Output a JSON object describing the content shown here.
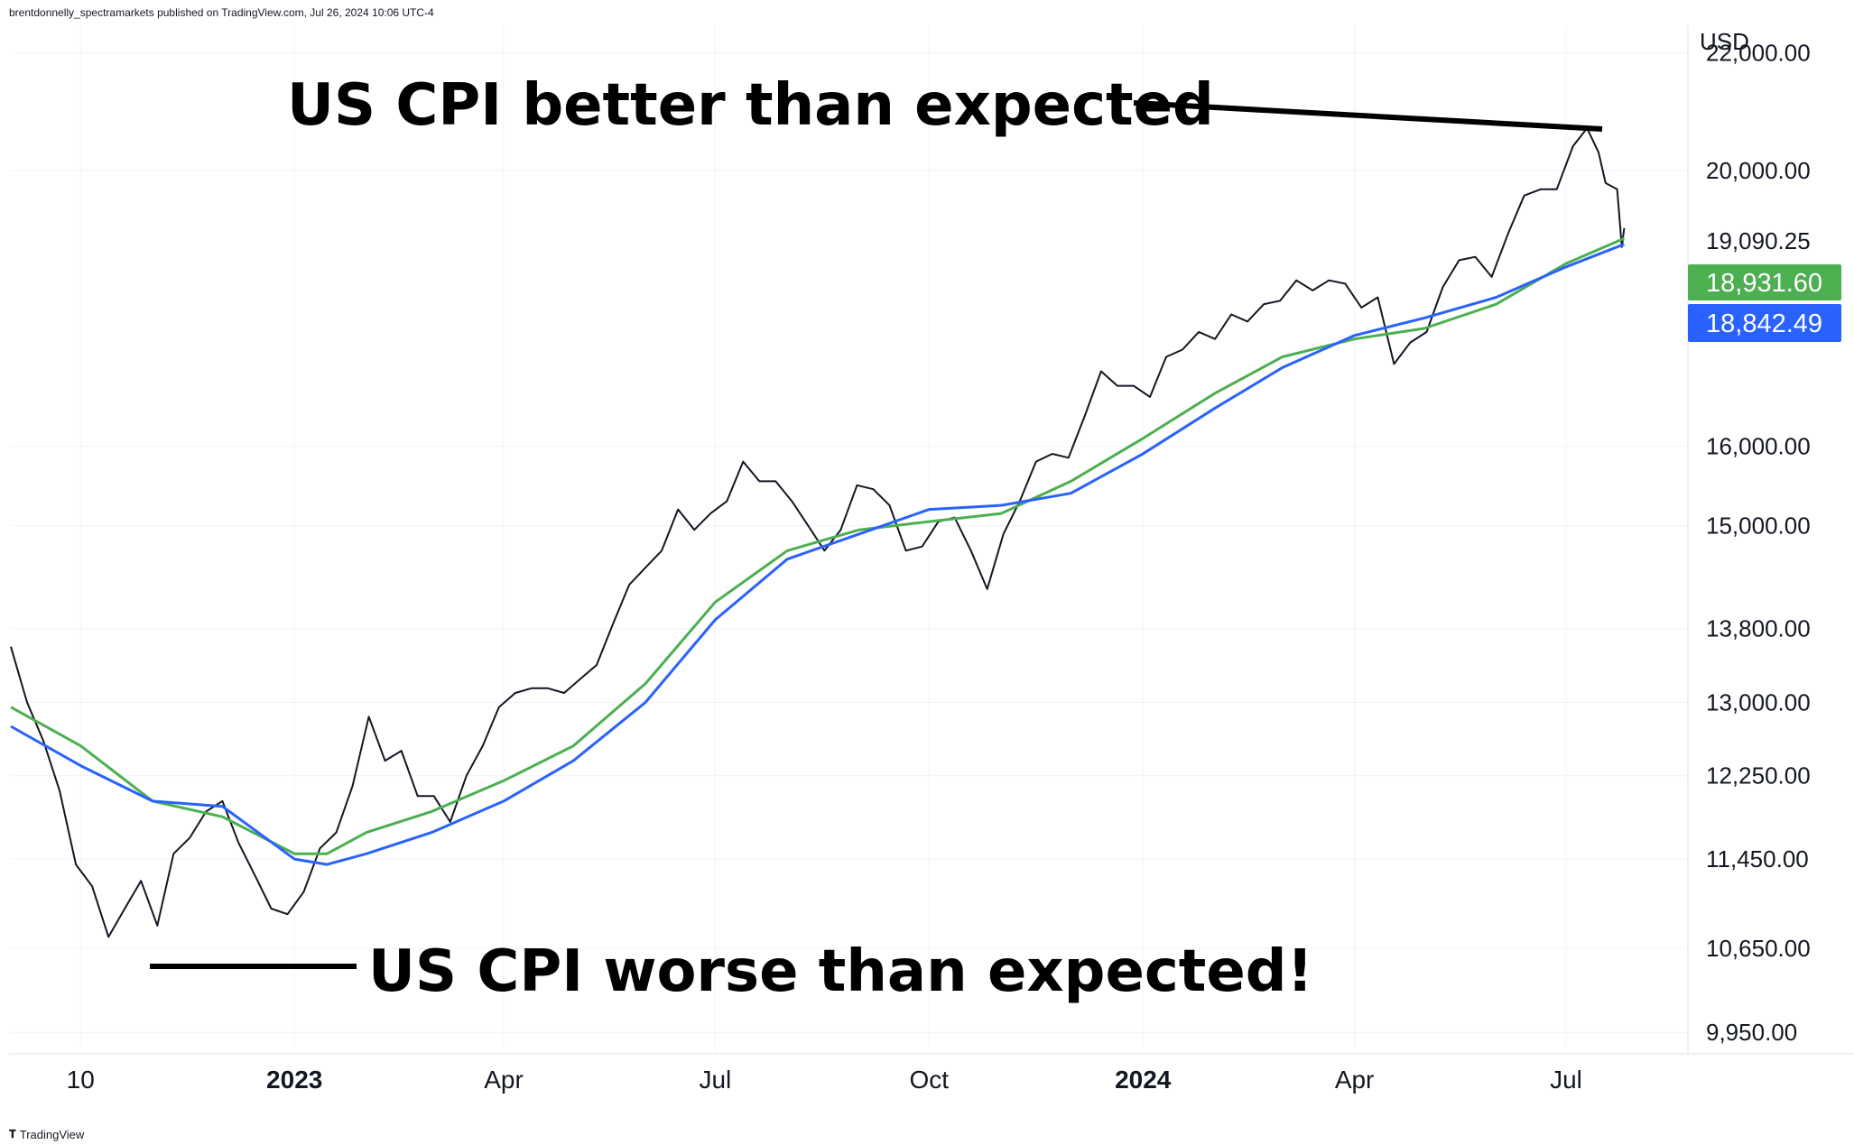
{
  "header": {
    "publisher": "brentdonnelly_spectramarkets published on TradingView.com, Jul 26, 2024 10:06 UTC-4"
  },
  "footer": {
    "brand": "TradingView",
    "logo_icon": "tradingview-logo-icon"
  },
  "annotations": {
    "top": "US CPI better than expected",
    "bottom": "US CPI worse than expected!"
  },
  "price_badges": {
    "last": {
      "text": "19,090.25"
    },
    "green": {
      "text": "18,931.60",
      "color": "#4caf50"
    },
    "blue": {
      "text": "18,842.49",
      "color": "#2962ff"
    }
  },
  "chart_data": {
    "type": "line",
    "title": "",
    "ylabel": "USD",
    "xlabel": "",
    "y_scale": "log",
    "ylim": [
      9800,
      22500
    ],
    "xlim": [
      "2022-09-01",
      "2024-08-10"
    ],
    "grid": true,
    "x_ticks": [
      {
        "label": "10",
        "date": "2022-10-01",
        "bold": false
      },
      {
        "label": "2023",
        "date": "2023-01-01",
        "bold": true
      },
      {
        "label": "Apr",
        "date": "2023-04-01",
        "bold": false
      },
      {
        "label": "Jul",
        "date": "2023-07-01",
        "bold": false
      },
      {
        "label": "Oct",
        "date": "2023-10-01",
        "bold": false
      },
      {
        "label": "2024",
        "date": "2024-01-01",
        "bold": true
      },
      {
        "label": "Apr",
        "date": "2024-04-01",
        "bold": false
      },
      {
        "label": "Jul",
        "date": "2024-07-01",
        "bold": false
      }
    ],
    "y_ticks": [
      {
        "label": "22,000.00",
        "value": 22000
      },
      {
        "label": "20,000.00",
        "value": 20000
      },
      {
        "label": "16,000.00",
        "value": 16000
      },
      {
        "label": "15,000.00",
        "value": 15000
      },
      {
        "label": "13,800.00",
        "value": 13800
      },
      {
        "label": "13,000.00",
        "value": 13000
      },
      {
        "label": "12,250.00",
        "value": 12250
      },
      {
        "label": "11,450.00",
        "value": 11450
      },
      {
        "label": "10,650.00",
        "value": 10650
      },
      {
        "label": "9,950.00",
        "value": 9950
      }
    ],
    "series": [
      {
        "kind": "price",
        "color": "#131722",
        "points": [
          [
            "2022-09-01",
            13600
          ],
          [
            "2022-09-08",
            13000
          ],
          [
            "2022-09-15",
            12600
          ],
          [
            "2022-09-22",
            12100
          ],
          [
            "2022-09-29",
            11400
          ],
          [
            "2022-10-06",
            11200
          ],
          [
            "2022-10-13",
            10750
          ],
          [
            "2022-10-20",
            11000
          ],
          [
            "2022-10-27",
            11250
          ],
          [
            "2022-11-03",
            10850
          ],
          [
            "2022-11-10",
            11500
          ],
          [
            "2022-11-17",
            11650
          ],
          [
            "2022-11-24",
            11900
          ],
          [
            "2022-12-01",
            12000
          ],
          [
            "2022-12-08",
            11600
          ],
          [
            "2022-12-15",
            11300
          ],
          [
            "2022-12-22",
            11000
          ],
          [
            "2022-12-29",
            10950
          ],
          [
            "2023-01-05",
            11150
          ],
          [
            "2023-01-12",
            11550
          ],
          [
            "2023-01-19",
            11700
          ],
          [
            "2023-01-26",
            12150
          ],
          [
            "2023-02-02",
            12850
          ],
          [
            "2023-02-09",
            12400
          ],
          [
            "2023-02-16",
            12500
          ],
          [
            "2023-02-23",
            12050
          ],
          [
            "2023-03-02",
            12050
          ],
          [
            "2023-03-09",
            11800
          ],
          [
            "2023-03-16",
            12250
          ],
          [
            "2023-03-23",
            12550
          ],
          [
            "2023-03-30",
            12950
          ],
          [
            "2023-04-06",
            13100
          ],
          [
            "2023-04-13",
            13150
          ],
          [
            "2023-04-20",
            13150
          ],
          [
            "2023-04-27",
            13100
          ],
          [
            "2023-05-04",
            13250
          ],
          [
            "2023-05-11",
            13400
          ],
          [
            "2023-05-18",
            13850
          ],
          [
            "2023-05-25",
            14300
          ],
          [
            "2023-06-01",
            14500
          ],
          [
            "2023-06-08",
            14700
          ],
          [
            "2023-06-15",
            15200
          ],
          [
            "2023-06-22",
            14950
          ],
          [
            "2023-06-29",
            15150
          ],
          [
            "2023-07-06",
            15300
          ],
          [
            "2023-07-13",
            15800
          ],
          [
            "2023-07-20",
            15550
          ],
          [
            "2023-07-27",
            15550
          ],
          [
            "2023-08-03",
            15300
          ],
          [
            "2023-08-10",
            15000
          ],
          [
            "2023-08-17",
            14700
          ],
          [
            "2023-08-24",
            14950
          ],
          [
            "2023-08-31",
            15500
          ],
          [
            "2023-09-07",
            15450
          ],
          [
            "2023-09-14",
            15250
          ],
          [
            "2023-09-21",
            14700
          ],
          [
            "2023-09-28",
            14750
          ],
          [
            "2023-10-05",
            15050
          ],
          [
            "2023-10-12",
            15100
          ],
          [
            "2023-10-19",
            14700
          ],
          [
            "2023-10-26",
            14250
          ],
          [
            "2023-11-02",
            14900
          ],
          [
            "2023-11-09",
            15300
          ],
          [
            "2023-11-16",
            15800
          ],
          [
            "2023-11-23",
            15900
          ],
          [
            "2023-11-30",
            15850
          ],
          [
            "2023-12-07",
            16400
          ],
          [
            "2023-12-14",
            17000
          ],
          [
            "2023-12-21",
            16800
          ],
          [
            "2023-12-28",
            16800
          ],
          [
            "2024-01-04",
            16650
          ],
          [
            "2024-01-11",
            17200
          ],
          [
            "2024-01-18",
            17300
          ],
          [
            "2024-01-25",
            17550
          ],
          [
            "2024-02-01",
            17450
          ],
          [
            "2024-02-08",
            17800
          ],
          [
            "2024-02-15",
            17700
          ],
          [
            "2024-02-22",
            17950
          ],
          [
            "2024-02-29",
            18000
          ],
          [
            "2024-03-07",
            18300
          ],
          [
            "2024-03-14",
            18150
          ],
          [
            "2024-03-21",
            18300
          ],
          [
            "2024-03-28",
            18250
          ],
          [
            "2024-04-04",
            17900
          ],
          [
            "2024-04-11",
            18050
          ],
          [
            "2024-04-18",
            17100
          ],
          [
            "2024-04-25",
            17400
          ],
          [
            "2024-05-02",
            17550
          ],
          [
            "2024-05-09",
            18200
          ],
          [
            "2024-05-16",
            18600
          ],
          [
            "2024-05-23",
            18650
          ],
          [
            "2024-05-30",
            18350
          ],
          [
            "2024-06-06",
            19000
          ],
          [
            "2024-06-13",
            19600
          ],
          [
            "2024-06-20",
            19700
          ],
          [
            "2024-06-27",
            19700
          ],
          [
            "2024-07-04",
            20400
          ],
          [
            "2024-07-10",
            20700
          ],
          [
            "2024-07-15",
            20300
          ],
          [
            "2024-07-18",
            19800
          ],
          [
            "2024-07-23",
            19700
          ],
          [
            "2024-07-25",
            18800
          ],
          [
            "2024-07-26",
            19090
          ]
        ]
      },
      {
        "kind": "ma",
        "name": "",
        "color": "#4caf50",
        "points": [
          [
            "2022-09-01",
            12950
          ],
          [
            "2022-10-01",
            12550
          ],
          [
            "2022-11-01",
            12000
          ],
          [
            "2022-12-01",
            11850
          ],
          [
            "2023-01-01",
            11500
          ],
          [
            "2023-01-15",
            11500
          ],
          [
            "2023-02-01",
            11700
          ],
          [
            "2023-03-01",
            11900
          ],
          [
            "2023-04-01",
            12200
          ],
          [
            "2023-05-01",
            12550
          ],
          [
            "2023-06-01",
            13200
          ],
          [
            "2023-07-01",
            14100
          ],
          [
            "2023-08-01",
            14700
          ],
          [
            "2023-09-01",
            14950
          ],
          [
            "2023-10-01",
            15050
          ],
          [
            "2023-11-01",
            15150
          ],
          [
            "2023-12-01",
            15550
          ],
          [
            "2024-01-01",
            16100
          ],
          [
            "2024-02-01",
            16700
          ],
          [
            "2024-03-01",
            17200
          ],
          [
            "2024-04-01",
            17450
          ],
          [
            "2024-05-01",
            17600
          ],
          [
            "2024-06-01",
            17950
          ],
          [
            "2024-07-01",
            18550
          ],
          [
            "2024-07-26",
            18931.6
          ]
        ]
      },
      {
        "kind": "ma",
        "name": "",
        "color": "#2962ff",
        "points": [
          [
            "2022-09-01",
            12750
          ],
          [
            "2022-10-01",
            12350
          ],
          [
            "2022-11-01",
            12000
          ],
          [
            "2022-12-01",
            11950
          ],
          [
            "2023-01-01",
            11450
          ],
          [
            "2023-01-15",
            11400
          ],
          [
            "2023-02-01",
            11500
          ],
          [
            "2023-03-01",
            11700
          ],
          [
            "2023-04-01",
            12000
          ],
          [
            "2023-05-01",
            12400
          ],
          [
            "2023-06-01",
            13000
          ],
          [
            "2023-07-01",
            13900
          ],
          [
            "2023-08-01",
            14600
          ],
          [
            "2023-09-01",
            14900
          ],
          [
            "2023-10-01",
            15200
          ],
          [
            "2023-11-01",
            15250
          ],
          [
            "2023-12-01",
            15400
          ],
          [
            "2024-01-01",
            15900
          ],
          [
            "2024-02-01",
            16500
          ],
          [
            "2024-03-01",
            17050
          ],
          [
            "2024-04-01",
            17500
          ],
          [
            "2024-05-01",
            17750
          ],
          [
            "2024-06-01",
            18050
          ],
          [
            "2024-07-01",
            18500
          ],
          [
            "2024-07-26",
            18842.49
          ]
        ]
      }
    ]
  }
}
